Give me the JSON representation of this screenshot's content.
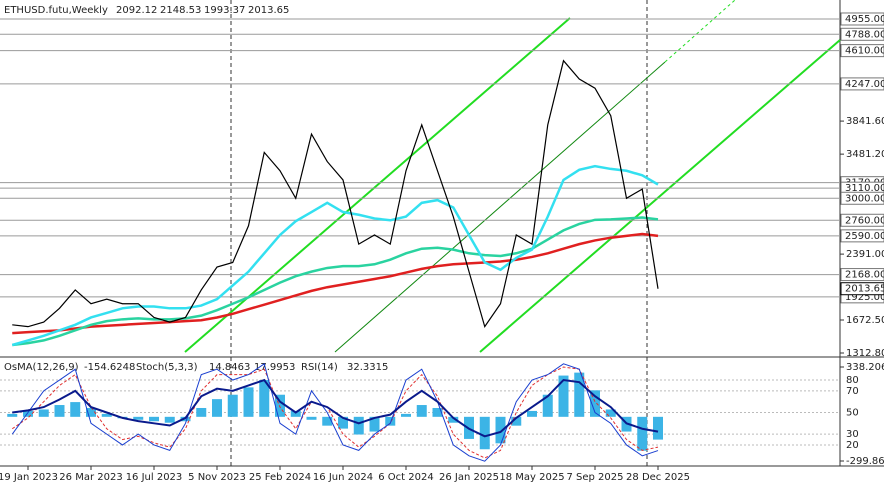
{
  "chart_data": {
    "type": "line",
    "title": "ETHUSD.futu,Weekly",
    "ohlc": [
      2092.12,
      2148.53,
      1993.37
    ],
    "categories": [
      null,
      "19 Jan 2023",
      null,
      null,
      null,
      "26 Mar 2023",
      null,
      null,
      null,
      "16 Jul 2023",
      null,
      null,
      null,
      "5 Nov 2023",
      null,
      null,
      null,
      "25 Feb 2024",
      null,
      null,
      null,
      "16 Jun 2024",
      null,
      null,
      null,
      "6 Oct 2024",
      null,
      null,
      null,
      "26 Jan 2025",
      null,
      null,
      null,
      "18 May 2025",
      null,
      null,
      null,
      "7 Sep 2025",
      null,
      null,
      null,
      "28 Dec 2025"
    ],
    "series": [
      {
        "color": "#000000",
        "values": [
          1620,
          1600,
          1650,
          1800,
          2000,
          1850,
          1900,
          1850,
          1850,
          1700,
          1650,
          1700,
          2000,
          2250,
          2300,
          2700,
          3500,
          3300,
          3000,
          3700,
          3400,
          3200,
          2500,
          2600,
          2500,
          3300,
          3800,
          3300,
          2800,
          2200,
          1600,
          1850,
          2600,
          2500,
          3800,
          4500,
          4300,
          4200,
          3900,
          3000,
          3100,
          2013.65
        ]
      },
      {
        "color": "#33e0f0",
        "values": [
          1400,
          1450,
          1500,
          1560,
          1620,
          1700,
          1750,
          1800,
          1820,
          1820,
          1800,
          1800,
          1830,
          1900,
          2050,
          2200,
          2400,
          2600,
          2750,
          2850,
          2950,
          2850,
          2820,
          2780,
          2760,
          2800,
          2950,
          2980,
          2900,
          2600,
          2300,
          2220,
          2350,
          2440,
          2800,
          3200,
          3310,
          3350,
          3320,
          3300,
          3250,
          3150
        ]
      },
      {
        "color": "#2ad3a0",
        "values": [
          1400,
          1420,
          1450,
          1500,
          1560,
          1620,
          1660,
          1680,
          1690,
          1680,
          1680,
          1690,
          1720,
          1780,
          1850,
          1920,
          2000,
          2080,
          2150,
          2200,
          2240,
          2260,
          2260,
          2280,
          2330,
          2400,
          2450,
          2460,
          2440,
          2400,
          2380,
          2370,
          2400,
          2450,
          2550,
          2650,
          2720,
          2765,
          2770,
          2780,
          2790,
          2770
        ]
      },
      {
        "color": "#e02020",
        "values": [
          1530,
          1540,
          1550,
          1560,
          1580,
          1600,
          1610,
          1620,
          1630,
          1640,
          1650,
          1660,
          1670,
          1700,
          1740,
          1790,
          1840,
          1890,
          1940,
          1990,
          2030,
          2060,
          2090,
          2120,
          2150,
          2190,
          2230,
          2260,
          2280,
          2290,
          2300,
          2310,
          2330,
          2360,
          2400,
          2450,
          2500,
          2540,
          2570,
          2590,
          2610,
          2590
        ]
      }
    ],
    "ylim": [
      1280,
      5162
    ],
    "yticks": [
      {
        "value": 3841.6,
        "label": "3841.60"
      },
      {
        "value": 3481.2,
        "label": "3481.20"
      },
      {
        "value": 2391,
        "label": "2391.00"
      },
      {
        "value": 1672.5,
        "label": "1672.50"
      },
      {
        "value": 1312.8,
        "label": "1312.80"
      }
    ],
    "levels": [
      {
        "value": 4955,
        "label": "4955.00"
      },
      {
        "value": 4788,
        "label": "4788.00"
      },
      {
        "value": 4610,
        "label": "4610.00"
      },
      {
        "value": 4247,
        "label": "4247.00"
      },
      {
        "value": 3170,
        "label": "3170.00"
      },
      {
        "value": 3110,
        "label": "3110.00"
      },
      {
        "value": 3000,
        "label": "3000.00"
      },
      {
        "value": 2760,
        "label": "2760.00"
      },
      {
        "value": 2590,
        "label": "2590.00"
      },
      {
        "value": 2168,
        "label": "2168.00"
      },
      {
        "value": 1925,
        "label": "1925.00"
      }
    ],
    "indicators": {
      "osma": {
        "label": "OsMA(12,26,9)",
        "color": "#3cb4e6",
        "values": [
          20,
          40,
          50,
          80,
          100,
          60,
          20,
          -10,
          -20,
          -30,
          -40,
          -30,
          60,
          120,
          150,
          200,
          250,
          150,
          40,
          -20,
          -60,
          -80,
          -120,
          -100,
          -60,
          20,
          80,
          60,
          -40,
          -150,
          -220,
          -180,
          -60,
          40,
          150,
          280,
          300,
          180,
          50,
          -100,
          -230,
          -154.6248
        ]
      },
      "stoch": {
        "label": "Stoch(5,3,3)",
        "k": {
          "color": "#1a3fd0",
          "values": [
            30,
            50,
            70,
            80,
            90,
            40,
            30,
            20,
            30,
            20,
            15,
            40,
            85,
            90,
            80,
            85,
            95,
            40,
            30,
            70,
            50,
            20,
            15,
            30,
            40,
            80,
            90,
            60,
            20,
            10,
            5,
            20,
            60,
            80,
            85,
            95,
            90,
            50,
            40,
            20,
            10,
            14.8463
          ]
        },
        "d": {
          "color": "#e03030",
          "values": [
            35,
            45,
            60,
            75,
            85,
            55,
            35,
            25,
            28,
            22,
            18,
            35,
            70,
            85,
            85,
            85,
            90,
            55,
            35,
            60,
            55,
            30,
            18,
            28,
            40,
            70,
            85,
            65,
            30,
            15,
            8,
            15,
            50,
            75,
            85,
            92,
            90,
            60,
            45,
            25,
            15,
            17.9953
          ]
        }
      },
      "rsi": {
        "label": "RSI(14)",
        "color": "#0a1a8c",
        "values": [
          50,
          52,
          55,
          62,
          70,
          55,
          50,
          45,
          42,
          40,
          38,
          45,
          65,
          72,
          70,
          75,
          80,
          60,
          50,
          60,
          55,
          45,
          40,
          45,
          48,
          60,
          70,
          60,
          45,
          35,
          28,
          32,
          45,
          55,
          65,
          80,
          78,
          65,
          55,
          40,
          35,
          32.3315
        ]
      },
      "osma_lim": [
        -327,
        385.7
      ],
      "osma_ticks": [
        338.206,
        -299.8649
      ],
      "pct_lim": [
        1.5,
        98.5
      ],
      "pct_ticks": [
        80,
        70,
        50,
        30,
        20
      ]
    }
  }
}
